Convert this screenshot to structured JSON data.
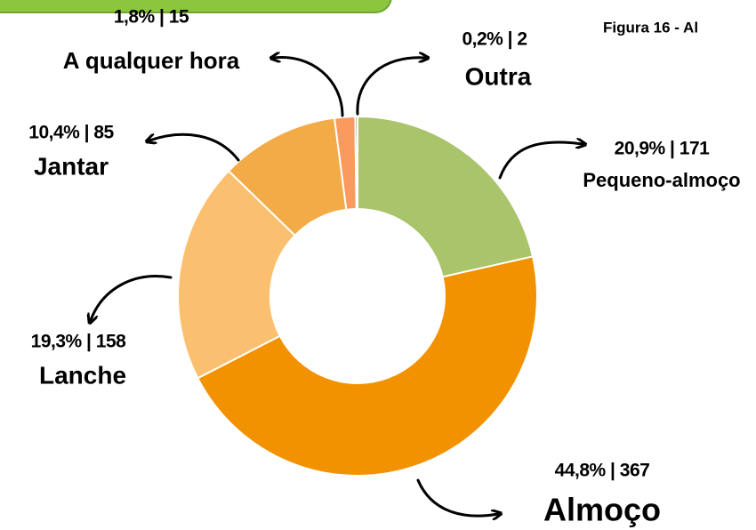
{
  "chart_data": {
    "type": "donut",
    "title": "Figura 16 - Al",
    "categories": [
      "Pequeno-almoço",
      "Almoço",
      "Lanche",
      "Jantar",
      "A qualquer hora",
      "Outra"
    ],
    "values": [
      20.9,
      44.8,
      19.3,
      10.4,
      1.8,
      0.2
    ],
    "value_labels": [
      "20,9%  | 171",
      "44,8%  |  367",
      "19,3% | 158",
      "10,4% | 85",
      "1,8%  |  15",
      "0,2%  | 2"
    ],
    "colors": [
      "#a9c46a",
      "#f29200",
      "#fbc06f",
      "#f2ab46",
      "#fb9a5e",
      "#7aa83e"
    ]
  }
}
